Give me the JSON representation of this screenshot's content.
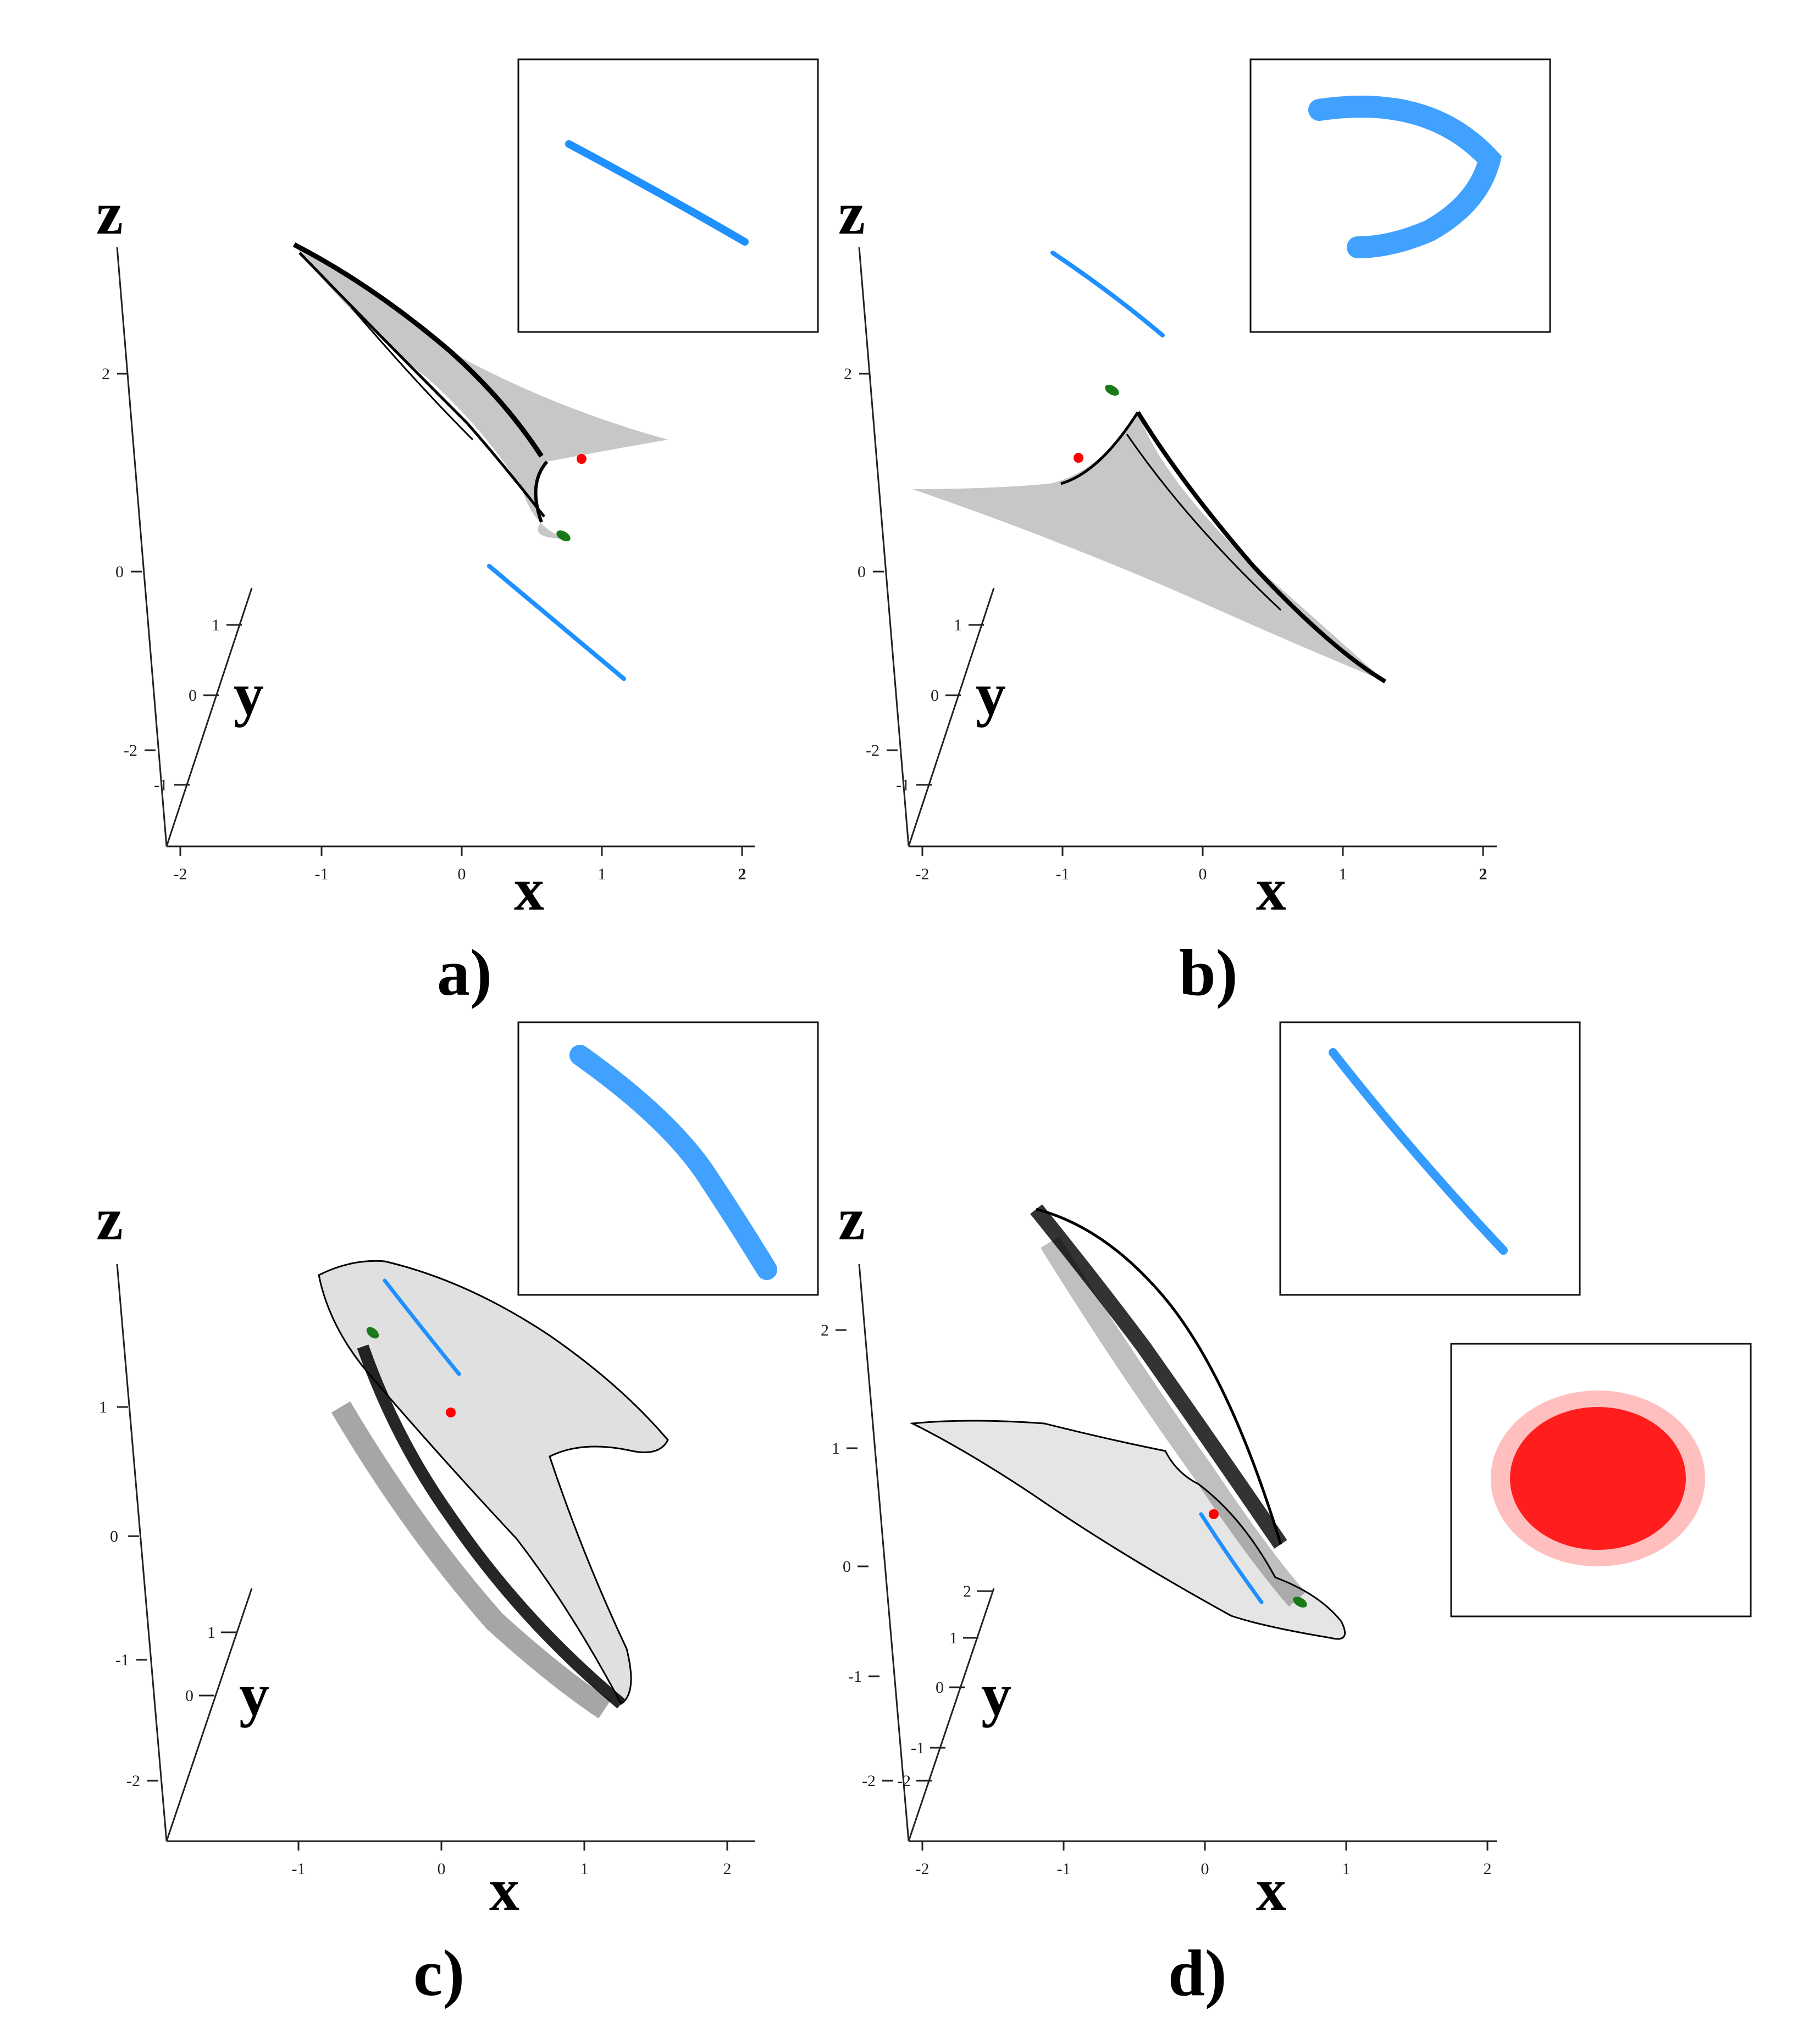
{
  "figure": {
    "colors": {
      "attractor": "#111111",
      "blue_set": "#1e90ff",
      "red_point": "#ff0000",
      "green_point": "#1a7a1a",
      "axis": "#222222",
      "frame": "#111111"
    },
    "axis_labels": {
      "x": "x",
      "y": "y",
      "z": "z"
    }
  },
  "chart_data": [
    {
      "type": "scatter",
      "panel_label": "a)",
      "x_ticks": [
        "-2",
        "-1",
        "0",
        "1",
        "2"
      ],
      "y_ticks": [
        "1",
        "0",
        "-1"
      ],
      "z_ticks": [
        "2",
        "0",
        "-2"
      ],
      "xlim": [
        -2,
        2
      ],
      "ylim": [
        -1,
        1
      ],
      "zlim": [
        -2,
        3
      ],
      "series": [
        {
          "role": "chaotic attractor",
          "color": "#111111"
        },
        {
          "role": "blue point cloud",
          "color": "#1e90ff"
        },
        {
          "role": "red point",
          "color": "#ff0000"
        },
        {
          "role": "green point",
          "color": "#1a7a1a"
        }
      ],
      "insets": [
        {
          "color": "#1e90ff",
          "shape": "thin band"
        }
      ]
    },
    {
      "type": "scatter",
      "panel_label": "b)",
      "x_ticks": [
        "-2",
        "-1",
        "0",
        "1",
        "2"
      ],
      "y_ticks": [
        "1",
        "0",
        "-1"
      ],
      "z_ticks": [
        "2",
        "0",
        "-2"
      ],
      "xlim": [
        -2,
        2
      ],
      "ylim": [
        -1,
        1
      ],
      "zlim": [
        -2,
        3
      ],
      "series": [
        {
          "role": "chaotic attractor",
          "color": "#111111"
        },
        {
          "role": "blue point cloud",
          "color": "#1e90ff"
        },
        {
          "role": "red point",
          "color": "#ff0000"
        },
        {
          "role": "green point",
          "color": "#1a7a1a"
        }
      ],
      "insets": [
        {
          "color": "#1e90ff",
          "shape": "horseshoe"
        }
      ]
    },
    {
      "type": "scatter",
      "panel_label": "c)",
      "x_ticks": [
        "-1",
        "0",
        "1",
        "2"
      ],
      "y_ticks": [
        "1",
        "0"
      ],
      "z_ticks": [
        "1",
        "0",
        "-1",
        "-2"
      ],
      "xlim": [
        -2,
        2
      ],
      "ylim": [
        -1,
        1
      ],
      "zlim": [
        -2,
        2
      ],
      "series": [
        {
          "role": "chaotic attractor",
          "color": "#111111"
        },
        {
          "role": "blue point cloud",
          "color": "#1e90ff"
        },
        {
          "role": "red point",
          "color": "#ff0000"
        },
        {
          "role": "green point",
          "color": "#1a7a1a"
        }
      ],
      "insets": [
        {
          "color": "#1e90ff",
          "shape": "wide band"
        }
      ]
    },
    {
      "type": "scatter",
      "panel_label": "d)",
      "x_ticks": [
        "-2",
        "-1",
        "0",
        "1",
        "2"
      ],
      "y_ticks": [
        "2",
        "1",
        "0",
        "-1",
        "-2"
      ],
      "z_ticks": [
        "2",
        "1",
        "0",
        "-1",
        "-2"
      ],
      "xlim": [
        -2,
        2
      ],
      "ylim": [
        -2,
        2
      ],
      "zlim": [
        -2,
        2
      ],
      "series": [
        {
          "role": "chaotic attractor",
          "color": "#111111"
        },
        {
          "role": "blue point cloud",
          "color": "#1e90ff"
        },
        {
          "role": "red point",
          "color": "#ff0000"
        },
        {
          "role": "green point",
          "color": "#1a7a1a"
        }
      ],
      "insets": [
        {
          "color": "#1e90ff",
          "shape": "thin band"
        },
        {
          "color": "#ff0000",
          "shape": "round cloud"
        }
      ]
    }
  ]
}
